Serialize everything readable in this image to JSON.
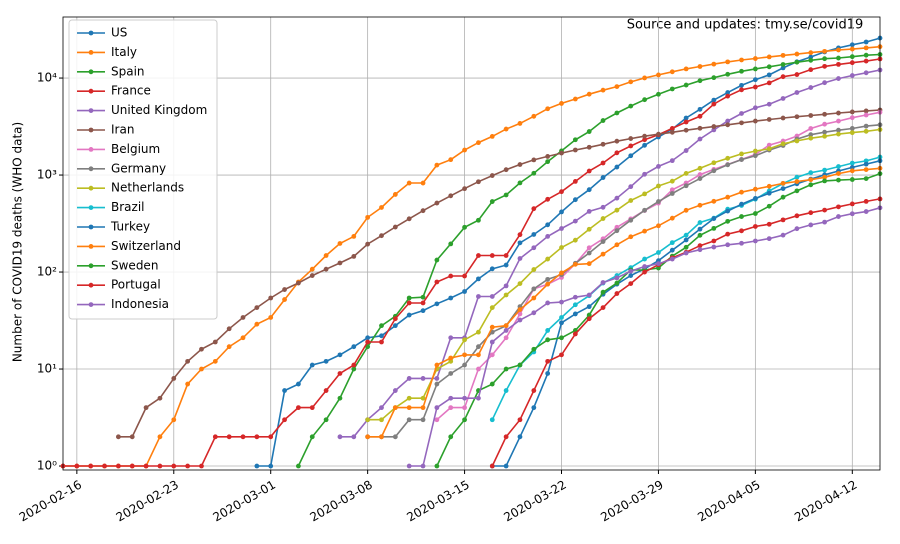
{
  "chart_data": {
    "type": "line",
    "annotation": "Source and updates: tmy.se/covid19",
    "ylabel": "Number of COVID19 deaths (WHO data)",
    "log_scale": true,
    "grid": true,
    "legend": "upper left",
    "x": [
      "2020-02-15",
      "2020-02-16",
      "2020-02-17",
      "2020-02-18",
      "2020-02-19",
      "2020-02-20",
      "2020-02-21",
      "2020-02-22",
      "2020-02-23",
      "2020-02-24",
      "2020-02-25",
      "2020-02-26",
      "2020-02-27",
      "2020-02-28",
      "2020-02-29",
      "2020-03-01",
      "2020-03-02",
      "2020-03-03",
      "2020-03-04",
      "2020-03-05",
      "2020-03-06",
      "2020-03-07",
      "2020-03-08",
      "2020-03-09",
      "2020-03-10",
      "2020-03-11",
      "2020-03-12",
      "2020-03-13",
      "2020-03-14",
      "2020-03-15",
      "2020-03-16",
      "2020-03-17",
      "2020-03-18",
      "2020-03-19",
      "2020-03-20",
      "2020-03-21",
      "2020-03-22",
      "2020-03-23",
      "2020-03-24",
      "2020-03-25",
      "2020-03-26",
      "2020-03-27",
      "2020-03-28",
      "2020-03-29",
      "2020-03-30",
      "2020-03-31",
      "2020-04-01",
      "2020-04-02",
      "2020-04-03",
      "2020-04-04",
      "2020-04-05",
      "2020-04-06",
      "2020-04-07",
      "2020-04-08",
      "2020-04-09",
      "2020-04-10",
      "2020-04-11",
      "2020-04-12",
      "2020-04-13",
      "2020-04-14"
    ],
    "xlim": [
      "2020-02-15",
      "2020-04-14"
    ],
    "xticks": [
      "2020-02-16",
      "2020-02-23",
      "2020-03-01",
      "2020-03-08",
      "2020-03-15",
      "2020-03-22",
      "2020-03-29",
      "2020-04-05",
      "2020-04-12"
    ],
    "ylim": [
      0.91,
      42600
    ],
    "yticks": [
      {
        "value": 1,
        "label": "10⁰"
      },
      {
        "value": 10,
        "label": "10¹"
      },
      {
        "value": 100,
        "label": "10²"
      },
      {
        "value": 1000,
        "label": "10³"
      },
      {
        "value": 10000,
        "label": "10⁴"
      }
    ],
    "series": [
      {
        "name": "US",
        "color": "#1f77b4",
        "values": [
          null,
          null,
          null,
          null,
          null,
          null,
          null,
          null,
          null,
          null,
          null,
          null,
          null,
          null,
          1,
          1,
          6,
          7,
          11,
          12,
          14,
          17,
          21,
          22,
          28,
          36,
          40,
          47,
          54,
          63,
          85,
          108,
          118,
          200,
          244,
          307,
          417,
          557,
          706,
          942,
          1209,
          1581,
          2026,
          2467,
          2978,
          3873,
          4757,
          5926,
          7087,
          8407,
          9619,
          10783,
          12722,
          14695,
          16478,
          18586,
          20463,
          22020,
          23529,
          25831
        ]
      },
      {
        "name": "Italy",
        "color": "#ff7f0e",
        "values": [
          1,
          1,
          1,
          1,
          1,
          1,
          1,
          2,
          3,
          7,
          10,
          12,
          17,
          21,
          29,
          34,
          52,
          79,
          107,
          148,
          197,
          233,
          366,
          463,
          631,
          827,
          827,
          1266,
          1441,
          1809,
          2158,
          2503,
          2978,
          3405,
          4032,
          4825,
          5476,
          6077,
          6820,
          7503,
          8165,
          9134,
          10023,
          10779,
          11591,
          12428,
          13155,
          13915,
          14681,
          15362,
          15887,
          16523,
          17127,
          17669,
          18279,
          18849,
          19468,
          19899,
          20465,
          21067
        ]
      },
      {
        "name": "Spain",
        "color": "#2ca02c",
        "values": [
          null,
          null,
          null,
          null,
          null,
          null,
          null,
          null,
          null,
          null,
          null,
          null,
          null,
          null,
          null,
          null,
          null,
          1,
          2,
          3,
          5,
          10,
          17,
          28,
          35,
          54,
          55,
          133,
          195,
          289,
          342,
          533,
          623,
          830,
          1043,
          1375,
          1772,
          2311,
          2808,
          3647,
          4365,
          5138,
          5982,
          6803,
          7716,
          8464,
          9387,
          10096,
          10935,
          11744,
          12418,
          13055,
          13798,
          14555,
          15238,
          15843,
          16081,
          16606,
          17209,
          17489
        ]
      },
      {
        "name": "France",
        "color": "#d62728",
        "values": [
          1,
          1,
          1,
          1,
          1,
          1,
          1,
          1,
          1,
          1,
          1,
          2,
          2,
          2,
          2,
          2,
          3,
          4,
          4,
          6,
          9,
          11,
          19,
          19,
          33,
          48,
          48,
          79,
          91,
          91,
          148,
          148,
          148,
          243,
          450,
          562,
          674,
          860,
          1100,
          1331,
          1696,
          1995,
          2314,
          2606,
          3024,
          3523,
          4032,
          5387,
          6507,
          7560,
          8078,
          8911,
          10328,
          10869,
          12210,
          13197,
          13832,
          14393,
          14967,
          15729
        ]
      },
      {
        "name": "United Kingdom",
        "color": "#9467bd",
        "values": [
          null,
          null,
          null,
          null,
          null,
          null,
          null,
          null,
          null,
          null,
          null,
          null,
          null,
          null,
          null,
          null,
          null,
          null,
          null,
          null,
          2,
          2,
          3,
          4,
          6,
          8,
          8,
          8,
          21,
          21,
          56,
          56,
          72,
          138,
          178,
          233,
          281,
          335,
          422,
          465,
          578,
          759,
          1019,
          1228,
          1408,
          1789,
          2352,
          2921,
          3605,
          4313,
          4934,
          5373,
          6159,
          7097,
          7978,
          8958,
          9875,
          10612,
          11329,
          12107
        ]
      },
      {
        "name": "Iran",
        "color": "#8c564b",
        "values": [
          null,
          null,
          null,
          null,
          2,
          2,
          4,
          5,
          8,
          12,
          16,
          19,
          26,
          34,
          43,
          54,
          66,
          77,
          92,
          107,
          124,
          145,
          194,
          237,
          291,
          354,
          429,
          514,
          611,
          724,
          853,
          988,
          1135,
          1284,
          1433,
          1556,
          1685,
          1812,
          1934,
          2077,
          2234,
          2378,
          2517,
          2640,
          2757,
          2898,
          3036,
          3160,
          3294,
          3452,
          3603,
          3739,
          3872,
          3993,
          4110,
          4232,
          4357,
          4474,
          4585,
          4683
        ]
      },
      {
        "name": "Belgium",
        "color": "#e377c2",
        "values": [
          null,
          null,
          null,
          null,
          null,
          null,
          null,
          null,
          null,
          null,
          null,
          null,
          null,
          null,
          null,
          null,
          null,
          null,
          null,
          null,
          null,
          null,
          null,
          null,
          null,
          null,
          null,
          3,
          4,
          4,
          10,
          14,
          21,
          37,
          67,
          75,
          88,
          122,
          178,
          220,
          289,
          353,
          431,
          513,
          705,
          828,
          1011,
          1143,
          1283,
          1447,
          1632,
          2035,
          2240,
          2523,
          3019,
          3346,
          3600,
          3903,
          4157,
          4440
        ]
      },
      {
        "name": "Germany",
        "color": "#7f7f7f",
        "values": [
          null,
          null,
          null,
          null,
          null,
          null,
          null,
          null,
          null,
          null,
          null,
          null,
          null,
          null,
          null,
          null,
          null,
          null,
          null,
          null,
          null,
          null,
          2,
          2,
          2,
          3,
          3,
          7,
          9,
          11,
          17,
          24,
          28,
          44,
          67,
          84,
          94,
          123,
          157,
          206,
          267,
          342,
          433,
          533,
          645,
          775,
          920,
          1107,
          1275,
          1444,
          1584,
          1810,
          2016,
          2349,
          2607,
          2767,
          2900,
          3022,
          3194,
          3294
        ]
      },
      {
        "name": "Netherlands",
        "color": "#bcbd22",
        "values": [
          null,
          null,
          null,
          null,
          null,
          null,
          null,
          null,
          null,
          null,
          null,
          null,
          null,
          null,
          null,
          null,
          null,
          null,
          null,
          null,
          null,
          null,
          3,
          3,
          4,
          5,
          5,
          10,
          12,
          20,
          24,
          43,
          58,
          76,
          106,
          136,
          179,
          213,
          276,
          356,
          434,
          546,
          639,
          771,
          864,
          1039,
          1173,
          1339,
          1487,
          1651,
          1766,
          1867,
          2101,
          2248,
          2396,
          2511,
          2643,
          2737,
          2823,
          2945
        ]
      },
      {
        "name": "Brazil",
        "color": "#17becf",
        "values": [
          null,
          null,
          null,
          null,
          null,
          null,
          null,
          null,
          null,
          null,
          null,
          null,
          null,
          null,
          null,
          null,
          null,
          null,
          null,
          null,
          null,
          null,
          null,
          null,
          null,
          null,
          null,
          null,
          null,
          null,
          null,
          3,
          6,
          11,
          15,
          25,
          34,
          46,
          57,
          77,
          92,
          111,
          136,
          159,
          201,
          240,
          324,
          359,
          445,
          486,
          564,
          686,
          819,
          950,
          1057,
          1124,
          1223,
          1328,
          1400,
          1532
        ]
      },
      {
        "name": "Turkey",
        "color": "#1f77b4",
        "values": [
          null,
          null,
          null,
          null,
          null,
          null,
          null,
          null,
          null,
          null,
          null,
          null,
          null,
          null,
          null,
          null,
          null,
          null,
          null,
          null,
          null,
          null,
          null,
          null,
          null,
          null,
          null,
          null,
          null,
          null,
          null,
          1,
          1,
          2,
          4,
          9,
          30,
          37,
          44,
          59,
          75,
          92,
          108,
          131,
          168,
          214,
          277,
          356,
          425,
          501,
          574,
          649,
          725,
          812,
          908,
          1006,
          1101,
          1198,
          1296,
          1403
        ]
      },
      {
        "name": "Switzerland",
        "color": "#ff7f0e",
        "values": [
          null,
          null,
          null,
          null,
          null,
          null,
          null,
          null,
          null,
          null,
          null,
          null,
          null,
          null,
          null,
          null,
          null,
          null,
          null,
          null,
          null,
          null,
          2,
          2,
          4,
          4,
          4,
          11,
          13,
          14,
          14,
          27,
          28,
          41,
          54,
          75,
          98,
          120,
          122,
          153,
          191,
          231,
          264,
          300,
          359,
          433,
          488,
          536,
          591,
          666,
          715,
          765,
          821,
          858,
          895,
          948,
          1036,
          1106,
          1138,
          1174
        ]
      },
      {
        "name": "Sweden",
        "color": "#2ca02c",
        "values": [
          null,
          null,
          null,
          null,
          null,
          null,
          null,
          null,
          null,
          null,
          null,
          null,
          null,
          null,
          null,
          null,
          null,
          null,
          null,
          null,
          null,
          null,
          null,
          null,
          null,
          null,
          null,
          1,
          2,
          3,
          6,
          7,
          10,
          11,
          16,
          20,
          21,
          25,
          36,
          62,
          77,
          105,
          105,
          110,
          146,
          180,
          239,
          282,
          333,
          373,
          401,
          477,
          591,
          687,
          793,
          870,
          887,
          899,
          919,
          1033
        ]
      },
      {
        "name": "Portugal",
        "color": "#d62728",
        "values": [
          null,
          null,
          null,
          null,
          null,
          null,
          null,
          null,
          null,
          null,
          null,
          null,
          null,
          null,
          null,
          null,
          null,
          null,
          null,
          null,
          null,
          null,
          null,
          null,
          null,
          null,
          null,
          null,
          null,
          null,
          null,
          1,
          2,
          3,
          6,
          12,
          14,
          23,
          33,
          43,
          60,
          76,
          100,
          119,
          140,
          160,
          187,
          209,
          246,
          266,
          295,
          311,
          345,
          380,
          409,
          435,
          470,
          504,
          535,
          567
        ]
      },
      {
        "name": "Indonesia",
        "color": "#9467bd",
        "values": [
          null,
          null,
          null,
          null,
          null,
          null,
          null,
          null,
          null,
          null,
          null,
          null,
          null,
          null,
          null,
          null,
          null,
          null,
          null,
          null,
          null,
          null,
          null,
          null,
          null,
          1,
          1,
          4,
          5,
          5,
          5,
          19,
          25,
          32,
          38,
          48,
          49,
          55,
          58,
          78,
          87,
          102,
          114,
          122,
          136,
          157,
          170,
          181,
          191,
          198,
          209,
          221,
          240,
          280,
          306,
          327,
          373,
          399,
          420,
          459
        ]
      }
    ]
  }
}
